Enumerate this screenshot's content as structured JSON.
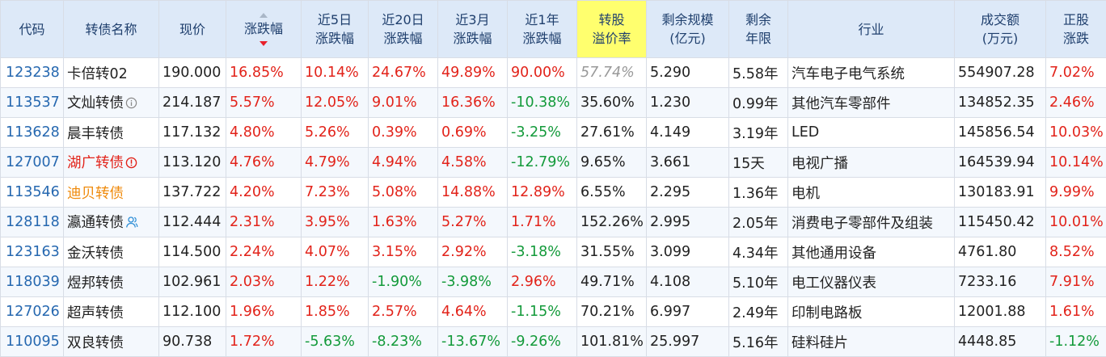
{
  "table": {
    "headers": [
      {
        "key": "code",
        "lines": [
          "代码"
        ]
      },
      {
        "key": "name",
        "lines": [
          "转债名称"
        ]
      },
      {
        "key": "price",
        "lines": [
          "现价"
        ]
      },
      {
        "key": "change",
        "lines": [
          "涨跌幅"
        ]
      },
      {
        "key": "d5",
        "lines": [
          "近5日",
          "涨跌幅"
        ]
      },
      {
        "key": "d20",
        "lines": [
          "近20日",
          "涨跌幅"
        ]
      },
      {
        "key": "m3",
        "lines": [
          "近3月",
          "涨跌幅"
        ]
      },
      {
        "key": "y1",
        "lines": [
          "近1年",
          "涨跌幅"
        ]
      },
      {
        "key": "premium",
        "lines": [
          "转股",
          "溢价率"
        ]
      },
      {
        "key": "scale",
        "lines": [
          "剩余规模",
          "(亿元)"
        ]
      },
      {
        "key": "term",
        "lines": [
          "剩余",
          "年限"
        ]
      },
      {
        "key": "industry",
        "lines": [
          "行业"
        ]
      },
      {
        "key": "volume",
        "lines": [
          "成交额",
          "(万元)"
        ]
      },
      {
        "key": "stock_change",
        "lines": [
          "正股",
          "涨跌"
        ]
      }
    ],
    "sort": {
      "column": "change",
      "direction": "desc"
    },
    "rows": [
      {
        "code": "123238",
        "name": "卡倍转02",
        "name_color": "normal",
        "icon": "",
        "price": "190.000",
        "change": "16.85%",
        "d5": "10.14%",
        "d20": "24.67%",
        "m3": "49.89%",
        "y1": "90.00%",
        "premium": "57.74%",
        "premium_style": "italic-gray",
        "scale": "5.290",
        "term": "5.58年",
        "industry": "汽车电子电气系统",
        "volume": "554907.28",
        "stock_change": "7.02%"
      },
      {
        "code": "113537",
        "name": "文灿转债",
        "name_color": "normal",
        "icon": "info-circle-icon",
        "price": "214.187",
        "change": "5.57%",
        "d5": "12.05%",
        "d20": "9.01%",
        "m3": "16.36%",
        "y1": "-10.38%",
        "premium": "35.60%",
        "premium_style": "normal",
        "scale": "1.230",
        "term": "0.99年",
        "industry": "其他汽车零部件",
        "volume": "134852.35",
        "stock_change": "2.46%"
      },
      {
        "code": "113628",
        "name": "晨丰转债",
        "name_color": "normal",
        "icon": "",
        "price": "117.132",
        "change": "4.80%",
        "d5": "5.26%",
        "d20": "0.39%",
        "m3": "0.69%",
        "y1": "-3.25%",
        "premium": "27.61%",
        "premium_style": "normal",
        "scale": "4.149",
        "term": "3.19年",
        "industry": "LED",
        "volume": "145856.54",
        "stock_change": "10.03%"
      },
      {
        "code": "127007",
        "name": "湖广转债",
        "name_color": "red",
        "icon": "warning-circle-icon",
        "price": "113.120",
        "change": "4.76%",
        "d5": "4.79%",
        "d20": "4.94%",
        "m3": "4.58%",
        "y1": "-12.79%",
        "premium": "9.65%",
        "premium_style": "normal",
        "scale": "3.661",
        "term": "15天",
        "industry": "电视广播",
        "volume": "164539.94",
        "stock_change": "10.14%"
      },
      {
        "code": "113546",
        "name": "迪贝转债",
        "name_color": "orange",
        "icon": "",
        "price": "137.722",
        "change": "4.20%",
        "d5": "7.23%",
        "d20": "5.08%",
        "m3": "14.88%",
        "y1": "12.89%",
        "premium": "6.55%",
        "premium_style": "normal",
        "scale": "2.295",
        "term": "1.36年",
        "industry": "电机",
        "volume": "130183.91",
        "stock_change": "9.99%"
      },
      {
        "code": "128118",
        "name": "瀛通转债",
        "name_color": "normal",
        "icon": "person-icon",
        "price": "112.444",
        "change": "2.31%",
        "d5": "3.95%",
        "d20": "1.63%",
        "m3": "5.27%",
        "y1": "1.71%",
        "premium": "152.26%",
        "premium_style": "normal",
        "scale": "2.995",
        "term": "2.05年",
        "industry": "消费电子零部件及组装",
        "volume": "115450.42",
        "stock_change": "10.01%"
      },
      {
        "code": "123163",
        "name": "金沃转债",
        "name_color": "normal",
        "icon": "",
        "price": "114.500",
        "change": "2.24%",
        "d5": "4.07%",
        "d20": "3.15%",
        "m3": "2.92%",
        "y1": "-3.18%",
        "premium": "31.55%",
        "premium_style": "normal",
        "scale": "3.099",
        "term": "4.34年",
        "industry": "其他通用设备",
        "volume": "4761.80",
        "stock_change": "8.52%"
      },
      {
        "code": "118039",
        "name": "煜邦转债",
        "name_color": "normal",
        "icon": "",
        "price": "102.961",
        "change": "2.03%",
        "d5": "1.22%",
        "d20": "-1.90%",
        "m3": "-3.98%",
        "y1": "2.96%",
        "premium": "49.71%",
        "premium_style": "normal",
        "scale": "4.108",
        "term": "5.10年",
        "industry": "电工仪器仪表",
        "volume": "7233.16",
        "stock_change": "7.91%"
      },
      {
        "code": "127026",
        "name": "超声转债",
        "name_color": "normal",
        "icon": "",
        "price": "112.100",
        "change": "1.96%",
        "d5": "1.85%",
        "d20": "2.57%",
        "m3": "4.64%",
        "y1": "-1.15%",
        "premium": "70.21%",
        "premium_style": "normal",
        "scale": "6.997",
        "term": "2.49年",
        "industry": "印制电路板",
        "volume": "12001.88",
        "stock_change": "1.61%"
      },
      {
        "code": "110095",
        "name": "双良转债",
        "name_color": "normal",
        "icon": "",
        "price": "90.738",
        "change": "1.72%",
        "d5": "-5.63%",
        "d20": "-8.23%",
        "m3": "-13.67%",
        "y1": "-9.26%",
        "premium": "101.81%",
        "premium_style": "normal",
        "scale": "25.997",
        "term": "5.16年",
        "industry": "硅料硅片",
        "volume": "4448.85",
        "stock_change": "-1.12%"
      }
    ]
  }
}
